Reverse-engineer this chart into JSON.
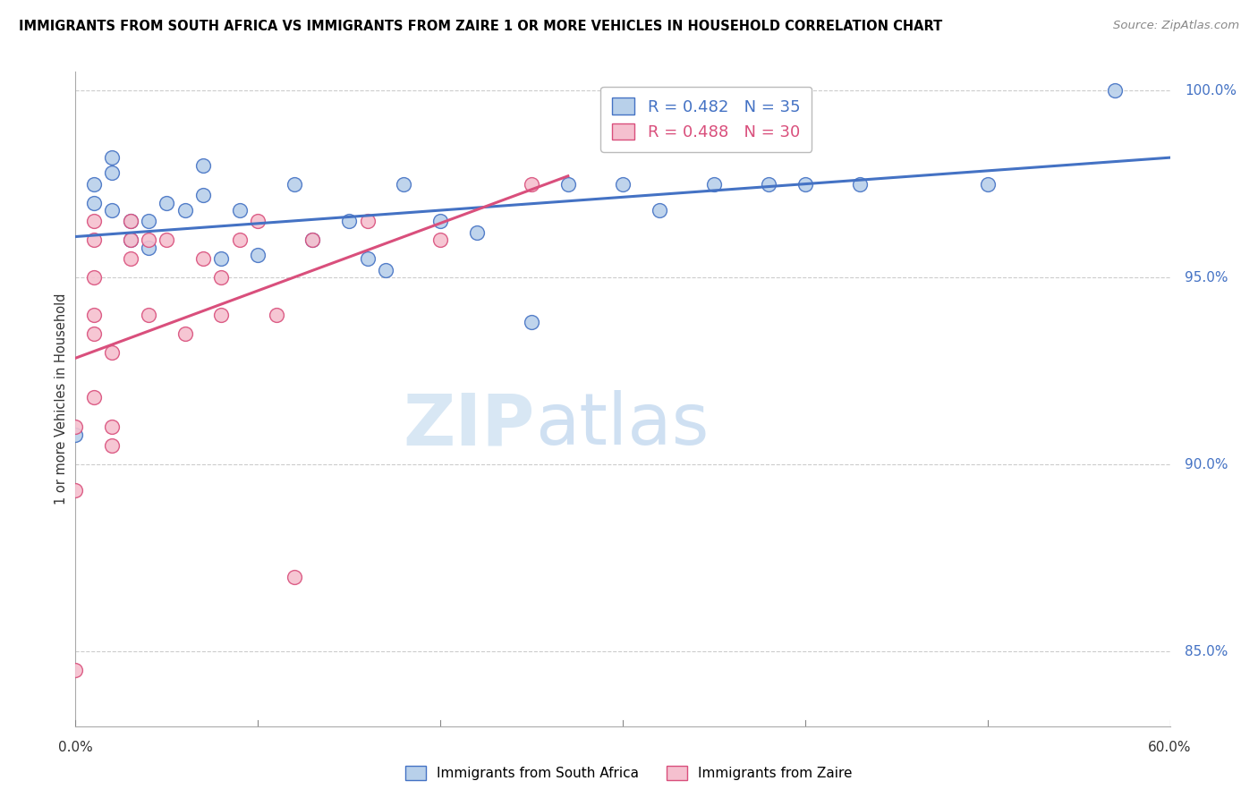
{
  "title": "IMMIGRANTS FROM SOUTH AFRICA VS IMMIGRANTS FROM ZAIRE 1 OR MORE VEHICLES IN HOUSEHOLD CORRELATION CHART",
  "source": "Source: ZipAtlas.com",
  "ylabel": "1 or more Vehicles in Household",
  "xmin": 0.0,
  "xmax": 0.6,
  "ymin": 0.83,
  "ymax": 1.005,
  "yticks": [
    0.85,
    0.9,
    0.95,
    1.0
  ],
  "ytick_labels": [
    "85.0%",
    "90.0%",
    "95.0%",
    "100.0%"
  ],
  "xtick_labels_show": [
    "0.0%",
    "60.0%"
  ],
  "legend_r_color": "#4472c4",
  "legend_r2_color": "#d94f7c",
  "south_africa_color": "#b8d0ea",
  "south_africa_edge": "#4472c4",
  "zaire_color": "#f5c0cf",
  "zaire_edge": "#d94f7c",
  "trend_blue_color": "#4472c4",
  "trend_pink_color": "#d94f7c",
  "south_africa_x": [
    0.0,
    0.01,
    0.01,
    0.02,
    0.02,
    0.02,
    0.03,
    0.03,
    0.04,
    0.04,
    0.05,
    0.06,
    0.07,
    0.07,
    0.08,
    0.09,
    0.1,
    0.12,
    0.13,
    0.15,
    0.16,
    0.17,
    0.18,
    0.2,
    0.22,
    0.25,
    0.27,
    0.3,
    0.32,
    0.35,
    0.38,
    0.4,
    0.43,
    0.5,
    0.57
  ],
  "south_africa_y": [
    0.908,
    0.97,
    0.975,
    0.968,
    0.978,
    0.982,
    0.96,
    0.965,
    0.965,
    0.958,
    0.97,
    0.968,
    0.972,
    0.98,
    0.955,
    0.968,
    0.956,
    0.975,
    0.96,
    0.965,
    0.955,
    0.952,
    0.975,
    0.965,
    0.962,
    0.938,
    0.975,
    0.975,
    0.968,
    0.975,
    0.975,
    0.975,
    0.975,
    0.975,
    1.0
  ],
  "zaire_x": [
    0.0,
    0.0,
    0.0,
    0.01,
    0.01,
    0.01,
    0.01,
    0.01,
    0.01,
    0.02,
    0.02,
    0.02,
    0.03,
    0.03,
    0.03,
    0.04,
    0.04,
    0.05,
    0.06,
    0.07,
    0.08,
    0.08,
    0.09,
    0.1,
    0.11,
    0.12,
    0.13,
    0.16,
    0.2,
    0.25
  ],
  "zaire_y": [
    0.845,
    0.893,
    0.91,
    0.918,
    0.935,
    0.94,
    0.95,
    0.96,
    0.965,
    0.905,
    0.91,
    0.93,
    0.955,
    0.96,
    0.965,
    0.94,
    0.96,
    0.96,
    0.935,
    0.955,
    0.94,
    0.95,
    0.96,
    0.965,
    0.94,
    0.87,
    0.96,
    0.965,
    0.96,
    0.975
  ],
  "legend_sa_label": "R = 0.482   N = 35",
  "legend_z_label": "R = 0.488   N = 30",
  "bottom_sa_label": "Immigrants from South Africa",
  "bottom_z_label": "Immigrants from Zaire"
}
